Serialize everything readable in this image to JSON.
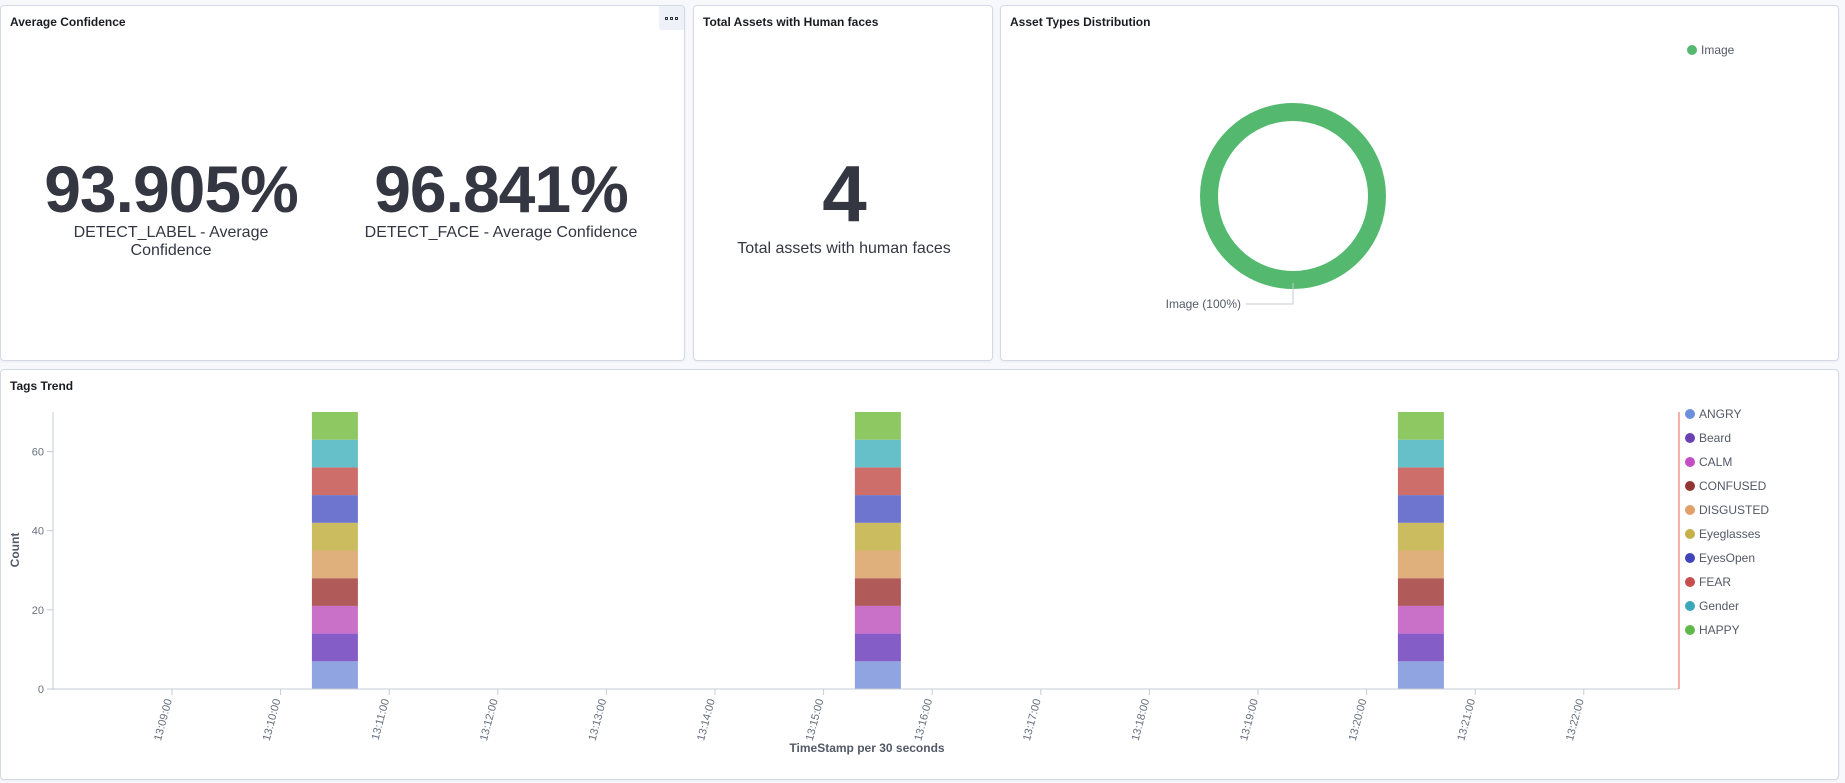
{
  "avg_panel": {
    "title": "Average Confidence",
    "metrics": [
      {
        "value": "93.905%",
        "label": "DETECT_LABEL - Average Confidence"
      },
      {
        "value": "96.841%",
        "label": "DETECT_FACE - Average Confidence"
      }
    ]
  },
  "faces_panel": {
    "title": "Total Assets with Human faces",
    "value": "4",
    "label": "Total assets with human faces"
  },
  "types_panel": {
    "title": "Asset Types Distribution",
    "legend": [
      {
        "name": "Image",
        "color": "#54b96f"
      }
    ],
    "slice_label": "Image (100%)",
    "chart_data": {
      "type": "pie",
      "donut": true,
      "slices": [
        {
          "name": "Image",
          "value": 100,
          "color": "#54b96f"
        }
      ],
      "legend_position": "top-right"
    }
  },
  "tags_panel": {
    "title": "Tags Trend",
    "chart_data": {
      "type": "bar",
      "stacked": true,
      "xlabel": "TimeStamp per 30 seconds",
      "ylabel": "Count",
      "ylim": [
        0,
        70
      ],
      "yticks": [
        0,
        20,
        40,
        60
      ],
      "xticks": [
        "13:09:00",
        "13:10:00",
        "13:11:00",
        "13:12:00",
        "13:13:00",
        "13:14:00",
        "13:15:00",
        "13:16:00",
        "13:17:00",
        "13:18:00",
        "13:19:00",
        "13:20:00",
        "13:21:00",
        "13:22:00"
      ],
      "bar_times": [
        "13:10:30",
        "13:15:30",
        "13:20:30"
      ],
      "bar_segment_colors": [
        "#8fa4e0",
        "#845ec6",
        "#c970c8",
        "#b05a5a",
        "#e0b07c",
        "#ccbc60",
        "#6d75cf",
        "#cd6e6a",
        "#65c0c9",
        "#8ec863"
      ],
      "series": [
        {
          "name": "ANGRY",
          "color": "#6c8edb"
        },
        {
          "name": "Beard",
          "color": "#6a40b5"
        },
        {
          "name": "CALM",
          "color": "#c44cc4"
        },
        {
          "name": "CONFUSED",
          "color": "#933535"
        },
        {
          "name": "DISGUSTED",
          "color": "#e1a06a"
        },
        {
          "name": "Eyeglasses",
          "color": "#c5b04a"
        },
        {
          "name": "EyesOpen",
          "color": "#3f45b8"
        },
        {
          "name": "FEAR",
          "color": "#c84e4e"
        },
        {
          "name": "Gender",
          "color": "#3aa8b8"
        },
        {
          "name": "HAPPY",
          "color": "#5fb84a"
        }
      ],
      "values_per_bar": [
        7,
        7,
        7,
        7,
        7,
        7,
        7,
        7,
        7,
        7
      ]
    }
  }
}
